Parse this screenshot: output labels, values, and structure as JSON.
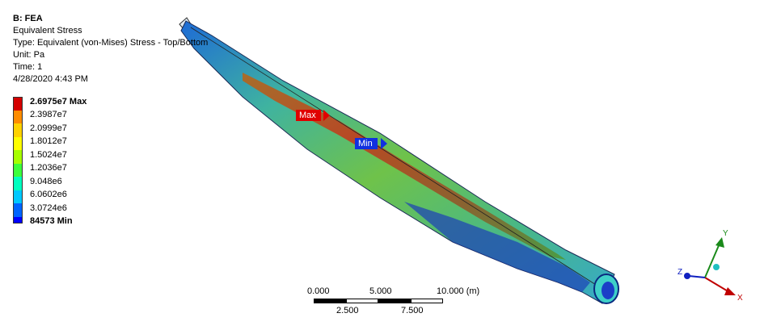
{
  "info": {
    "title": "B: FEA",
    "result": "Equivalent Stress",
    "type": "Type: Equivalent (von-Mises) Stress - Top/Bottom",
    "unit": "Unit: Pa",
    "time": "Time: 1",
    "date": "4/28/2020 4:43 PM"
  },
  "legend": {
    "colors": [
      "#d40000",
      "#ff8c00",
      "#ffd200",
      "#ffff00",
      "#a6ff00",
      "#3cff3c",
      "#00ffbf",
      "#00c8ff",
      "#0064ff",
      "#0000ff"
    ],
    "labels": [
      "2.6975e7 Max",
      "2.3987e7",
      "2.0999e7",
      "1.8012e7",
      "1.5024e7",
      "1.2036e7",
      "9.048e6",
      "6.0602e6",
      "3.0724e6",
      "84573 Min"
    ]
  },
  "probes": {
    "max_label": "Max",
    "min_label": "Min"
  },
  "scale": {
    "t0": "0.000",
    "t5": "5.000",
    "t10": "10.000 (m)",
    "t25": "2.500",
    "t75": "7.500"
  },
  "triad": {
    "x": "X",
    "y": "Y",
    "z": "Z"
  }
}
